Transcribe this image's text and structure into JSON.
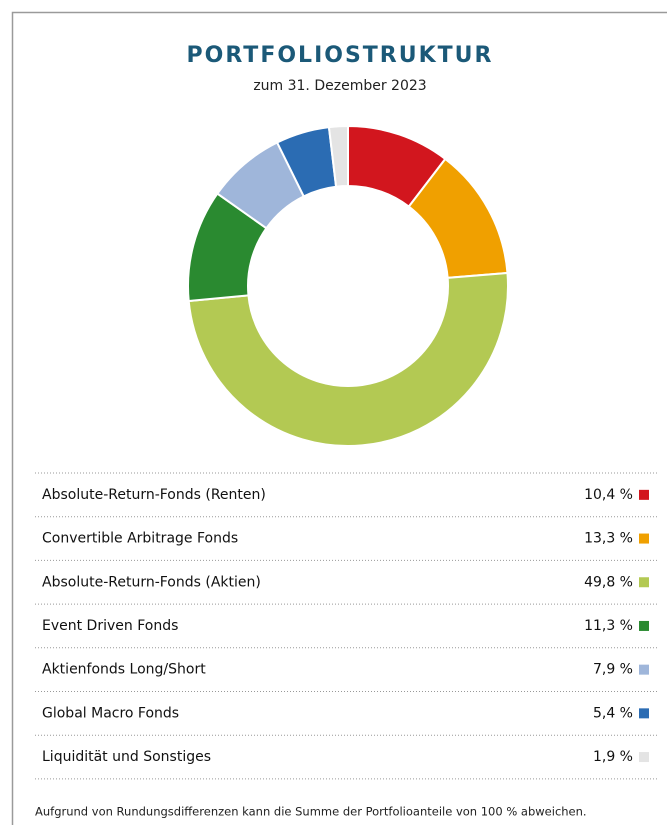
{
  "chart_data": {
    "type": "donut",
    "title": "PORTFOLIOSTRUKTUR",
    "subtitle": "zum 31. Dezember 2023",
    "categories": [
      "Absolute-Return-Fonds (Renten)",
      "Convertible Arbitrage Fonds",
      "Absolute-Return-Fonds (Aktien)",
      "Event Driven Fonds",
      "Aktienfonds Long/Short",
      "Global Macro Fonds",
      "Liquidität und Sonstiges"
    ],
    "values": [
      10.4,
      13.3,
      49.8,
      11.3,
      7.9,
      5.4,
      1.9
    ],
    "value_labels": [
      "10,4 %",
      "13,3 %",
      "49,8 %",
      "11,3 %",
      "7,9 %",
      "5,4 %",
      "1,9 %"
    ],
    "colors": [
      "#d2161e",
      "#f0a000",
      "#b3c953",
      "#2a8a30",
      "#9fb6da",
      "#2b6cb3",
      "#e4e4e4"
    ],
    "footnote": "Aufgrund von Rundungsdifferenzen kann die Summe der Portfolioanteile von 100 % abweichen."
  }
}
